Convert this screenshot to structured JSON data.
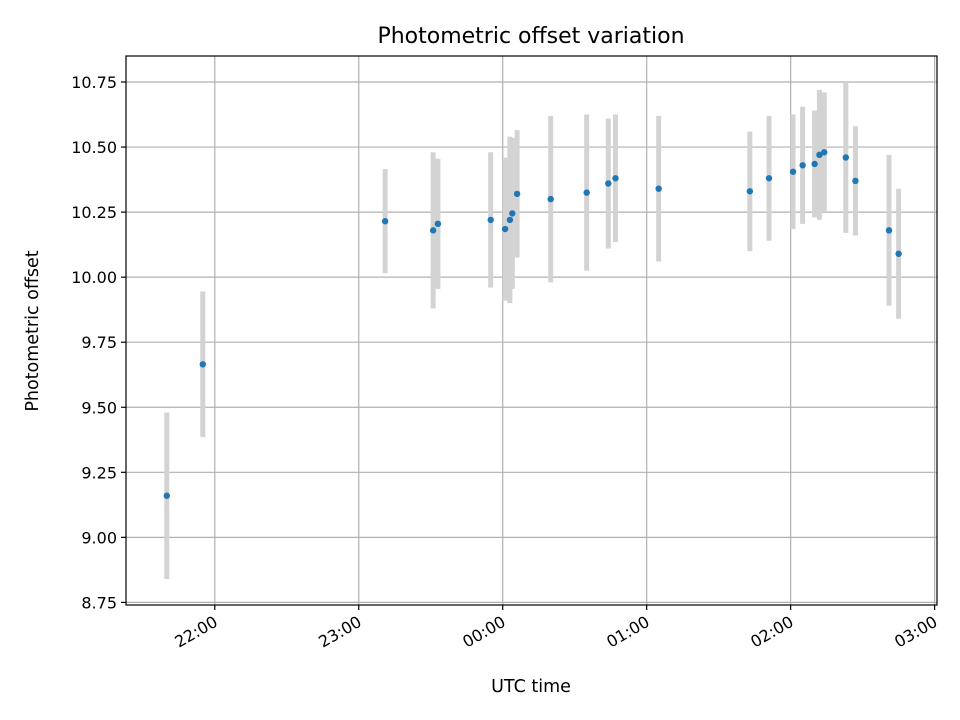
{
  "chart_data": {
    "type": "scatter",
    "title": "Photometric offset variation",
    "xlabel": "UTC time",
    "ylabel": "Photometric offset",
    "x_ticks": [
      "22:00",
      "23:00",
      "00:00",
      "01:00",
      "02:00",
      "03:00"
    ],
    "y_ticks": [
      "8.75",
      "9.00",
      "9.25",
      "9.50",
      "9.75",
      "10.00",
      "10.25",
      "10.50",
      "10.75"
    ],
    "xlim": [
      "21:23",
      "03:01"
    ],
    "ylim": [
      8.74,
      10.85
    ],
    "grid": true,
    "colors": {
      "point": "#1f77b4",
      "errorbar": "#d3d3d3"
    },
    "series": [
      {
        "points": [
          {
            "t": "21:40",
            "y": 9.16,
            "err": 0.32
          },
          {
            "t": "21:55",
            "y": 9.665,
            "err": 0.28
          },
          {
            "t": "23:11",
            "y": 10.215,
            "err": 0.2
          },
          {
            "t": "23:31",
            "y": 10.18,
            "err": 0.3
          },
          {
            "t": "23:33",
            "y": 10.205,
            "err": 0.25
          },
          {
            "t": "23:55",
            "y": 10.22,
            "err": 0.26
          },
          {
            "t": "00:01",
            "y": 10.185,
            "err": 0.275
          },
          {
            "t": "00:03",
            "y": 10.22,
            "err": 0.32
          },
          {
            "t": "00:04",
            "y": 10.245,
            "err": 0.29
          },
          {
            "t": "00:06",
            "y": 10.32,
            "err": 0.245
          },
          {
            "t": "00:20",
            "y": 10.3,
            "err": 0.32
          },
          {
            "t": "00:35",
            "y": 10.325,
            "err": 0.3
          },
          {
            "t": "00:44",
            "y": 10.36,
            "err": 0.25
          },
          {
            "t": "00:47",
            "y": 10.38,
            "err": 0.245
          },
          {
            "t": "01:05",
            "y": 10.34,
            "err": 0.28
          },
          {
            "t": "01:43",
            "y": 10.33,
            "err": 0.23
          },
          {
            "t": "01:51",
            "y": 10.38,
            "err": 0.24
          },
          {
            "t": "02:01",
            "y": 10.405,
            "err": 0.22
          },
          {
            "t": "02:05",
            "y": 10.43,
            "err": 0.225
          },
          {
            "t": "02:10",
            "y": 10.435,
            "err": 0.205
          },
          {
            "t": "02:12",
            "y": 10.47,
            "err": 0.25
          },
          {
            "t": "02:14",
            "y": 10.48,
            "err": 0.23
          },
          {
            "t": "02:23",
            "y": 10.46,
            "err": 0.29
          },
          {
            "t": "02:27",
            "y": 10.37,
            "err": 0.21
          },
          {
            "t": "02:41",
            "y": 10.18,
            "err": 0.29
          },
          {
            "t": "02:45",
            "y": 10.09,
            "err": 0.25
          }
        ]
      }
    ]
  }
}
